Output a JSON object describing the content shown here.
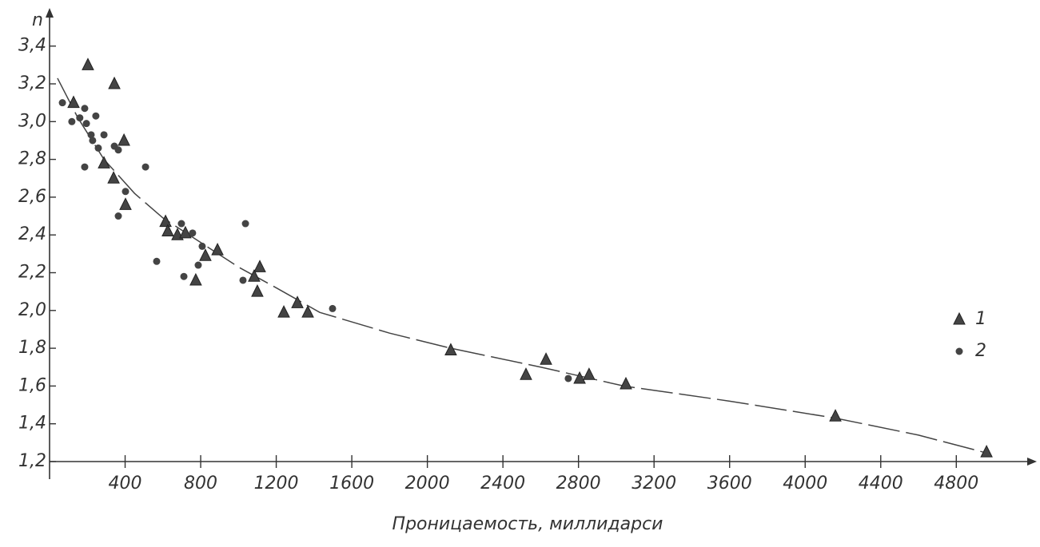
{
  "chart_data": {
    "type": "scatter",
    "y_label": "n",
    "x_label": "Проницаемость, миллидарси",
    "xlim": [
      0,
      5150
    ],
    "ylim": [
      1.2,
      3.57
    ],
    "xticks": [
      400,
      800,
      1200,
      1600,
      2000,
      2400,
      2800,
      3200,
      3600,
      4000,
      4400,
      4800
    ],
    "yticks": [
      {
        "value": 1.2,
        "label": "1,2"
      },
      {
        "value": 1.4,
        "label": "1,4"
      },
      {
        "value": 1.6,
        "label": "1,6"
      },
      {
        "value": 1.8,
        "label": "1,8"
      },
      {
        "value": 2.0,
        "label": "2,0"
      },
      {
        "value": 2.2,
        "label": "2,2"
      },
      {
        "value": 2.4,
        "label": "2,4"
      },
      {
        "value": 2.6,
        "label": "2,6"
      },
      {
        "value": 2.8,
        "label": "2,8"
      },
      {
        "value": 3.0,
        "label": "3,0"
      },
      {
        "value": 3.2,
        "label": "3,2"
      },
      {
        "value": 3.4,
        "label": "3,4"
      }
    ],
    "legend_position": "right",
    "series": [
      {
        "name": "1",
        "marker": "triangle",
        "color": "#444444",
        "x": [
          203,
          343,
          127,
          394,
          288,
          339,
          402,
          614,
          626,
          677,
          719,
          774,
          825,
          889,
          1113,
          1083,
          1100,
          1240,
          1312,
          1367,
          2124,
          2522,
          2628,
          2806,
          2856,
          3051,
          4160,
          4960
        ],
        "values": [
          3.3,
          3.2,
          3.1,
          2.9,
          2.78,
          2.7,
          2.56,
          2.47,
          2.42,
          2.4,
          2.41,
          2.16,
          2.29,
          2.32,
          2.23,
          2.18,
          2.1,
          1.99,
          2.04,
          1.99,
          1.79,
          1.66,
          1.74,
          1.64,
          1.66,
          1.61,
          1.44,
          1.25
        ]
      },
      {
        "name": "2",
        "marker": "dot",
        "color": "#444444",
        "x": [
          68,
          118,
          160,
          186,
          195,
          220,
          228,
          245,
          258,
          288,
          186,
          343,
          364,
          402,
          364,
          508,
          567,
          698,
          711,
          757,
          787,
          808,
          1037,
          1024,
          1498,
          2746
        ],
        "values": [
          3.1,
          3.0,
          3.02,
          3.07,
          2.99,
          2.93,
          2.9,
          3.03,
          2.86,
          2.93,
          2.76,
          2.87,
          2.85,
          2.63,
          2.5,
          2.76,
          2.26,
          2.46,
          2.18,
          2.41,
          2.24,
          2.34,
          2.46,
          2.16,
          2.01,
          1.64
        ]
      }
    ],
    "fit_curve": {
      "color": "#444444",
      "x": [
        42,
        150,
        288,
        450,
        600,
        800,
        1000,
        1200,
        1430,
        1800,
        2124,
        2600,
        3040,
        3600,
        4160,
        4600,
        4943
      ],
      "values": [
        3.23,
        3.02,
        2.8,
        2.62,
        2.49,
        2.36,
        2.23,
        2.12,
        1.99,
        1.88,
        1.8,
        1.7,
        1.6,
        1.52,
        1.43,
        1.34,
        1.25
      ]
    }
  }
}
